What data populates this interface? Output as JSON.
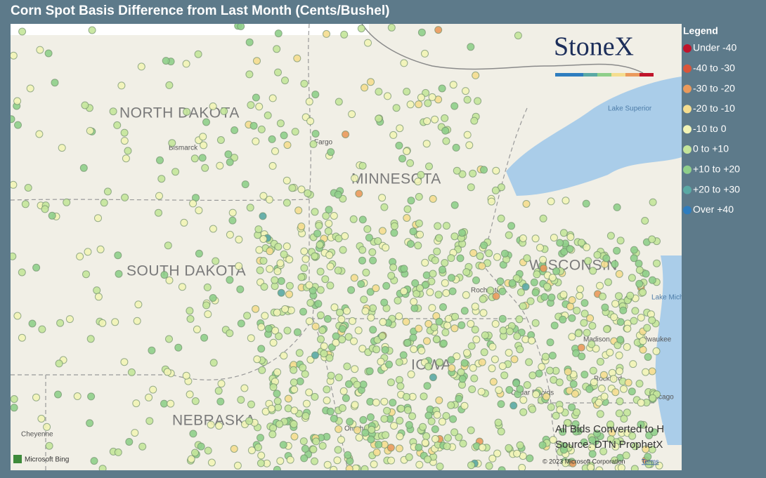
{
  "title": "Corn Spot Basis Difference from Last Month (Cents/Bushel)",
  "legend": {
    "title": "Legend",
    "items": [
      {
        "label": "Under -40",
        "color": "#c0142b"
      },
      {
        "label": "-40 to -30",
        "color": "#d9553a"
      },
      {
        "label": "-30 to -20",
        "color": "#ea9a5c"
      },
      {
        "label": "-20 to -10",
        "color": "#f5dd8f"
      },
      {
        "label": "-10 to 0",
        "color": "#f2f4b6"
      },
      {
        "label": "0 to +10",
        "color": "#c4e59a"
      },
      {
        "label": "+10 to +20",
        "color": "#8fcf8a"
      },
      {
        "label": "+20 to +30",
        "color": "#5aa9a4"
      },
      {
        "label": "Over +40",
        "color": "#2e7dbf"
      }
    ]
  },
  "map": {
    "states": [
      "NORTH DAKOTA",
      "SOUTH DAKOTA",
      "MINNESOTA",
      "WISCONSIN",
      "IOWA",
      "NEBRASKA"
    ],
    "cities": [
      "Bismarck",
      "Fargo",
      "Rochester",
      "Madison",
      "Milwaukee",
      "Rockford",
      "Chicago",
      "Cedar Rapids",
      "Omaha",
      "Cheyenne"
    ],
    "water": [
      "Lake Superior",
      "Lake Michigan"
    ]
  },
  "logo": "StoneX",
  "notes": [
    "All Bids Converted to H",
    "Source: DTN ProphetX"
  ],
  "attribution": {
    "provider": "Microsoft Bing",
    "copyright": "© 2023 Microsoft Corporation",
    "terms": "Terms"
  }
}
